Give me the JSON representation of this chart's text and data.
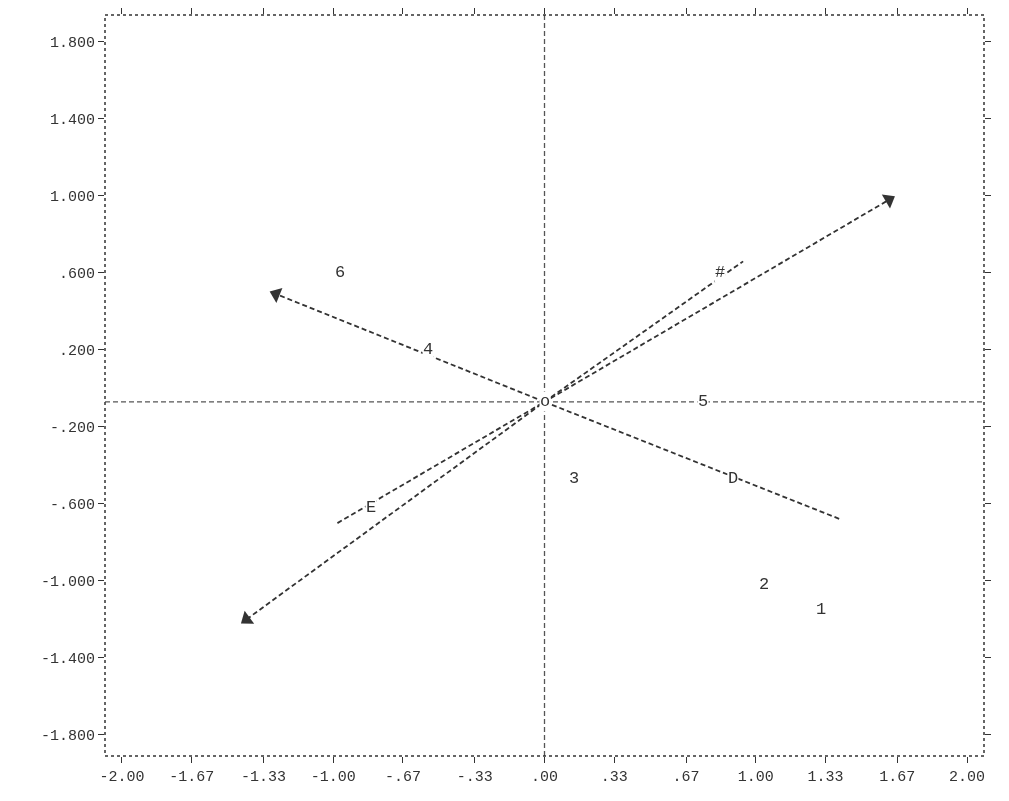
{
  "chart_data": {
    "type": "line",
    "xlim": [
      -2.08,
      2.08
    ],
    "ylim": [
      -1.91,
      1.94
    ],
    "xticks": [
      {
        "value": -2.0,
        "label": "-2.00"
      },
      {
        "value": -1.67,
        "label": "-1.67"
      },
      {
        "value": -1.33,
        "label": "-1.33"
      },
      {
        "value": -1.0,
        "label": "-1.00"
      },
      {
        "value": -0.67,
        "label": "-.67"
      },
      {
        "value": -0.33,
        "label": "-.33"
      },
      {
        "value": 0,
        "label": ".00"
      },
      {
        "value": 0.33,
        "label": ".33"
      },
      {
        "value": 0.67,
        "label": ".67"
      },
      {
        "value": 1.0,
        "label": "1.00"
      },
      {
        "value": 1.33,
        "label": "1.33"
      },
      {
        "value": 1.67,
        "label": "1.67"
      },
      {
        "value": 2.0,
        "label": "2.00"
      }
    ],
    "yticks": [
      {
        "value": 1.8,
        "label": "1.800"
      },
      {
        "value": 1.4,
        "label": "1.400"
      },
      {
        "value": 1.0,
        "label": "1.000"
      },
      {
        "value": 0.6,
        "label": ".600"
      },
      {
        "value": 0.2,
        "label": ".200"
      },
      {
        "value": -0.2,
        "label": "-.200"
      },
      {
        "value": -0.6,
        "label": "-.600"
      },
      {
        "value": -1.0,
        "label": "-1.000"
      },
      {
        "value": -1.4,
        "label": "-1.400"
      },
      {
        "value": -1.8,
        "label": "-1.800"
      }
    ],
    "grid": false,
    "line_style": "dashed",
    "ref_lines": [
      {
        "axis": "x",
        "value": 0,
        "color": "#555555",
        "line_style": "dashed"
      },
      {
        "axis": "y",
        "value": -0.07,
        "color": "#555555",
        "line_style": "dashed"
      }
    ],
    "series": [
      {
        "marker": "triangle",
        "color": "#333333",
        "x": [
          -1.41,
          0,
          1.63
        ],
        "values": [
          -1.2,
          -0.07,
          0.98
        ]
      },
      {
        "marker": "triangle",
        "color": "#333333",
        "x": [
          0,
          -1.27
        ],
        "values": [
          -0.07,
          0.49
        ]
      },
      {
        "color": "#333333",
        "x": [
          -0.98,
          0,
          0.94
        ],
        "values": [
          -0.7,
          -0.07,
          0.66
        ]
      },
      {
        "color": "#333333",
        "x": [
          0,
          1.4
        ],
        "values": [
          -0.07,
          -0.68
        ]
      }
    ],
    "annotations": [
      {
        "text": "1",
        "x": 1.31,
        "y": -1.15
      },
      {
        "text": "2",
        "x": 1.04,
        "y": -1.02
      },
      {
        "text": "3",
        "x": 0.14,
        "y": -0.47
      },
      {
        "text": "4",
        "x": -0.55,
        "y": 0.2
      },
      {
        "text": "5",
        "x": 0.75,
        "y": -0.07
      },
      {
        "text": "6",
        "x": -0.97,
        "y": 0.6
      },
      {
        "text": "#",
        "x": 0.83,
        "y": 0.6
      },
      {
        "text": "D",
        "x": 0.89,
        "y": -0.47
      },
      {
        "text": "E",
        "x": -0.82,
        "y": -0.62
      },
      {
        "text": "o",
        "x": 0,
        "y": -0.07
      }
    ]
  }
}
